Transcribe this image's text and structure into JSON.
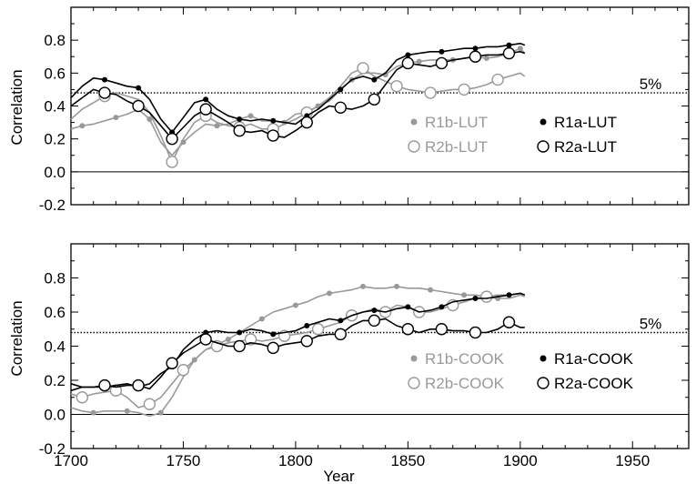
{
  "chart_data": [
    {
      "type": "line",
      "ylabel": "Correlation",
      "ylim": [
        -0.2,
        1.0
      ],
      "xlim": [
        1700,
        1975
      ],
      "y_ticks": [
        "-0.2",
        "0.0",
        "0.2",
        "0.4",
        "0.6",
        "0.8"
      ],
      "x_ticks": [],
      "zero_line": true,
      "significance": {
        "value": 0.48,
        "label": "5%"
      },
      "legend_position": "center-right",
      "series": [
        {
          "name": "R1b-LUT",
          "color": "#999999",
          "marker": "filled",
          "marker_x": [
            1705,
            1720,
            1735,
            1750,
            1765,
            1780,
            1795,
            1810,
            1825,
            1840,
            1855,
            1870,
            1885,
            1900
          ],
          "x": [
            1700,
            1705,
            1710,
            1715,
            1720,
            1725,
            1730,
            1735,
            1740,
            1745,
            1750,
            1755,
            1760,
            1765,
            1770,
            1775,
            1780,
            1785,
            1790,
            1795,
            1800,
            1805,
            1810,
            1815,
            1820,
            1825,
            1830,
            1835,
            1840,
            1845,
            1850,
            1855,
            1860,
            1865,
            1870,
            1875,
            1880,
            1885,
            1890,
            1895,
            1900,
            1902
          ],
          "y": [
            0.26,
            0.28,
            0.29,
            0.31,
            0.33,
            0.35,
            0.38,
            0.32,
            0.18,
            0.1,
            0.18,
            0.24,
            0.29,
            0.28,
            0.29,
            0.32,
            0.34,
            0.31,
            0.31,
            0.3,
            0.35,
            0.36,
            0.4,
            0.43,
            0.5,
            0.56,
            0.6,
            0.6,
            0.59,
            0.64,
            0.66,
            0.67,
            0.68,
            0.68,
            0.68,
            0.69,
            0.7,
            0.69,
            0.7,
            0.72,
            0.75,
            0.72
          ]
        },
        {
          "name": "R2b-LUT",
          "color": "#999999",
          "marker": "open",
          "marker_x": [
            1715,
            1745,
            1760,
            1775,
            1790,
            1805,
            1830,
            1845,
            1860,
            1875,
            1890
          ],
          "x": [
            1700,
            1705,
            1710,
            1715,
            1720,
            1725,
            1730,
            1735,
            1740,
            1745,
            1750,
            1755,
            1760,
            1765,
            1770,
            1775,
            1780,
            1785,
            1790,
            1795,
            1800,
            1805,
            1810,
            1815,
            1820,
            1825,
            1830,
            1835,
            1840,
            1845,
            1850,
            1855,
            1860,
            1865,
            1870,
            1875,
            1880,
            1885,
            1890,
            1895,
            1900,
            1902
          ],
          "y": [
            0.32,
            0.38,
            0.42,
            0.46,
            0.48,
            0.46,
            0.44,
            0.36,
            0.22,
            0.06,
            0.2,
            0.3,
            0.34,
            0.3,
            0.28,
            0.27,
            0.29,
            0.26,
            0.26,
            0.29,
            0.32,
            0.36,
            0.4,
            0.45,
            0.52,
            0.6,
            0.63,
            0.58,
            0.55,
            0.52,
            0.5,
            0.49,
            0.48,
            0.49,
            0.5,
            0.5,
            0.51,
            0.53,
            0.56,
            0.58,
            0.6,
            0.58
          ]
        },
        {
          "name": "R1a-LUT",
          "color": "#000000",
          "marker": "filled",
          "marker_x": [
            1715,
            1730,
            1745,
            1760,
            1775,
            1790,
            1805,
            1820,
            1835,
            1850,
            1865,
            1880,
            1895
          ],
          "x": [
            1700,
            1705,
            1710,
            1715,
            1720,
            1725,
            1730,
            1735,
            1740,
            1745,
            1750,
            1755,
            1760,
            1765,
            1770,
            1775,
            1780,
            1785,
            1790,
            1795,
            1800,
            1805,
            1810,
            1815,
            1820,
            1825,
            1830,
            1835,
            1840,
            1845,
            1850,
            1855,
            1860,
            1865,
            1870,
            1875,
            1880,
            1885,
            1890,
            1895,
            1900,
            1902
          ],
          "y": [
            0.45,
            0.52,
            0.57,
            0.56,
            0.54,
            0.52,
            0.51,
            0.44,
            0.32,
            0.24,
            0.33,
            0.42,
            0.44,
            0.38,
            0.34,
            0.32,
            0.31,
            0.32,
            0.31,
            0.3,
            0.29,
            0.34,
            0.38,
            0.44,
            0.5,
            0.56,
            0.58,
            0.56,
            0.6,
            0.68,
            0.71,
            0.72,
            0.73,
            0.73,
            0.74,
            0.75,
            0.75,
            0.76,
            0.76,
            0.77,
            0.78,
            0.77
          ]
        },
        {
          "name": "R2a-LUT",
          "color": "#000000",
          "marker": "open",
          "marker_x": [
            1715,
            1730,
            1745,
            1760,
            1775,
            1790,
            1805,
            1820,
            1835,
            1850,
            1865,
            1880,
            1895
          ],
          "x": [
            1700,
            1705,
            1710,
            1715,
            1720,
            1725,
            1730,
            1735,
            1740,
            1745,
            1750,
            1755,
            1760,
            1765,
            1770,
            1775,
            1780,
            1785,
            1790,
            1795,
            1800,
            1805,
            1810,
            1815,
            1820,
            1825,
            1830,
            1835,
            1840,
            1845,
            1850,
            1855,
            1860,
            1865,
            1870,
            1875,
            1880,
            1885,
            1890,
            1895,
            1900,
            1902
          ],
          "y": [
            0.4,
            0.45,
            0.5,
            0.48,
            0.47,
            0.43,
            0.4,
            0.36,
            0.28,
            0.2,
            0.27,
            0.34,
            0.38,
            0.34,
            0.3,
            0.25,
            0.24,
            0.25,
            0.22,
            0.21,
            0.25,
            0.3,
            0.36,
            0.4,
            0.39,
            0.38,
            0.4,
            0.44,
            0.53,
            0.62,
            0.66,
            0.65,
            0.64,
            0.66,
            0.68,
            0.69,
            0.7,
            0.71,
            0.71,
            0.72,
            0.73,
            0.72
          ]
        }
      ]
    },
    {
      "type": "line",
      "ylabel": "Correlation",
      "xlabel": "Year",
      "ylim": [
        -0.2,
        1.0
      ],
      "xlim": [
        1700,
        1975
      ],
      "y_ticks": [
        "-0.2",
        "0.0",
        "0.2",
        "0.4",
        "0.6",
        "0.8"
      ],
      "x_ticks": [
        "1700",
        "1750",
        "1800",
        "1850",
        "1900",
        "1950"
      ],
      "zero_line": true,
      "significance": {
        "value": 0.48,
        "label": "5%"
      },
      "legend_position": "lower-right",
      "series": [
        {
          "name": "R1b-COOK",
          "color": "#999999",
          "marker": "filled",
          "marker_x": [
            1710,
            1725,
            1740,
            1755,
            1770,
            1785,
            1800,
            1815,
            1830,
            1845,
            1860,
            1875,
            1890
          ],
          "x": [
            1700,
            1705,
            1710,
            1715,
            1720,
            1725,
            1730,
            1735,
            1740,
            1745,
            1750,
            1755,
            1760,
            1765,
            1770,
            1775,
            1780,
            1785,
            1790,
            1795,
            1800,
            1805,
            1810,
            1815,
            1820,
            1825,
            1830,
            1835,
            1840,
            1845,
            1850,
            1855,
            1860,
            1865,
            1870,
            1875,
            1880,
            1885,
            1890,
            1895,
            1900,
            1902
          ],
          "y": [
            0.04,
            0.02,
            0.01,
            0.02,
            0.02,
            0.02,
            0.01,
            -0.01,
            0.01,
            0.1,
            0.22,
            0.32,
            0.38,
            0.41,
            0.44,
            0.48,
            0.52,
            0.56,
            0.6,
            0.62,
            0.64,
            0.66,
            0.69,
            0.71,
            0.72,
            0.73,
            0.75,
            0.74,
            0.74,
            0.75,
            0.74,
            0.74,
            0.73,
            0.72,
            0.71,
            0.7,
            0.7,
            0.69,
            0.68,
            0.68,
            0.7,
            0.69
          ]
        },
        {
          "name": "R2b-COOK",
          "color": "#999999",
          "marker": "open",
          "marker_x": [
            1705,
            1720,
            1735,
            1750,
            1765,
            1780,
            1795,
            1810,
            1825,
            1840,
            1855,
            1870,
            1885
          ],
          "x": [
            1700,
            1705,
            1710,
            1715,
            1720,
            1725,
            1730,
            1735,
            1740,
            1745,
            1750,
            1755,
            1760,
            1765,
            1770,
            1775,
            1780,
            1785,
            1790,
            1795,
            1800,
            1805,
            1810,
            1815,
            1820,
            1825,
            1830,
            1835,
            1840,
            1845,
            1850,
            1855,
            1860,
            1865,
            1870,
            1875,
            1880,
            1885,
            1890,
            1895,
            1900,
            1902
          ],
          "y": [
            0.12,
            0.1,
            0.12,
            0.13,
            0.14,
            0.1,
            0.04,
            0.06,
            0.1,
            0.18,
            0.26,
            0.32,
            0.38,
            0.4,
            0.42,
            0.43,
            0.44,
            0.43,
            0.44,
            0.46,
            0.47,
            0.48,
            0.5,
            0.52,
            0.54,
            0.58,
            0.6,
            0.62,
            0.6,
            0.64,
            0.63,
            0.6,
            0.6,
            0.62,
            0.64,
            0.66,
            0.68,
            0.69,
            0.7,
            0.7,
            0.71,
            0.7
          ]
        },
        {
          "name": "R1a-COOK",
          "color": "#000000",
          "marker": "filled",
          "marker_x": [
            1715,
            1730,
            1745,
            1760,
            1775,
            1790,
            1805,
            1820,
            1835,
            1850,
            1865,
            1880,
            1895
          ],
          "x": [
            1700,
            1705,
            1710,
            1715,
            1720,
            1725,
            1730,
            1735,
            1740,
            1745,
            1750,
            1755,
            1760,
            1765,
            1770,
            1775,
            1780,
            1785,
            1790,
            1795,
            1800,
            1805,
            1810,
            1815,
            1820,
            1825,
            1830,
            1835,
            1840,
            1845,
            1850,
            1855,
            1860,
            1865,
            1870,
            1875,
            1880,
            1885,
            1890,
            1895,
            1900,
            1902
          ],
          "y": [
            0.14,
            0.16,
            0.16,
            0.16,
            0.17,
            0.18,
            0.16,
            0.18,
            0.24,
            0.28,
            0.38,
            0.44,
            0.48,
            0.49,
            0.48,
            0.48,
            0.5,
            0.49,
            0.47,
            0.48,
            0.49,
            0.52,
            0.54,
            0.56,
            0.55,
            0.58,
            0.6,
            0.61,
            0.6,
            0.62,
            0.63,
            0.6,
            0.61,
            0.63,
            0.66,
            0.67,
            0.68,
            0.68,
            0.69,
            0.7,
            0.71,
            0.7
          ]
        },
        {
          "name": "R2a-COOK",
          "color": "#000000",
          "marker": "open",
          "marker_x": [
            1715,
            1730,
            1745,
            1760,
            1775,
            1790,
            1805,
            1820,
            1835,
            1850,
            1865,
            1880,
            1895
          ],
          "x": [
            1700,
            1705,
            1710,
            1715,
            1720,
            1725,
            1730,
            1735,
            1740,
            1745,
            1750,
            1755,
            1760,
            1765,
            1770,
            1775,
            1780,
            1785,
            1790,
            1795,
            1800,
            1805,
            1810,
            1815,
            1820,
            1825,
            1830,
            1835,
            1840,
            1845,
            1850,
            1855,
            1860,
            1865,
            1870,
            1875,
            1880,
            1885,
            1890,
            1895,
            1900,
            1902
          ],
          "y": [
            0.18,
            0.16,
            0.16,
            0.17,
            0.16,
            0.17,
            0.17,
            0.15,
            0.22,
            0.3,
            0.36,
            0.4,
            0.44,
            0.42,
            0.4,
            0.4,
            0.42,
            0.41,
            0.39,
            0.41,
            0.42,
            0.43,
            0.46,
            0.47,
            0.47,
            0.52,
            0.55,
            0.55,
            0.56,
            0.52,
            0.5,
            0.48,
            0.5,
            0.5,
            0.49,
            0.49,
            0.48,
            0.48,
            0.5,
            0.54,
            0.51,
            0.51
          ]
        }
      ]
    }
  ]
}
